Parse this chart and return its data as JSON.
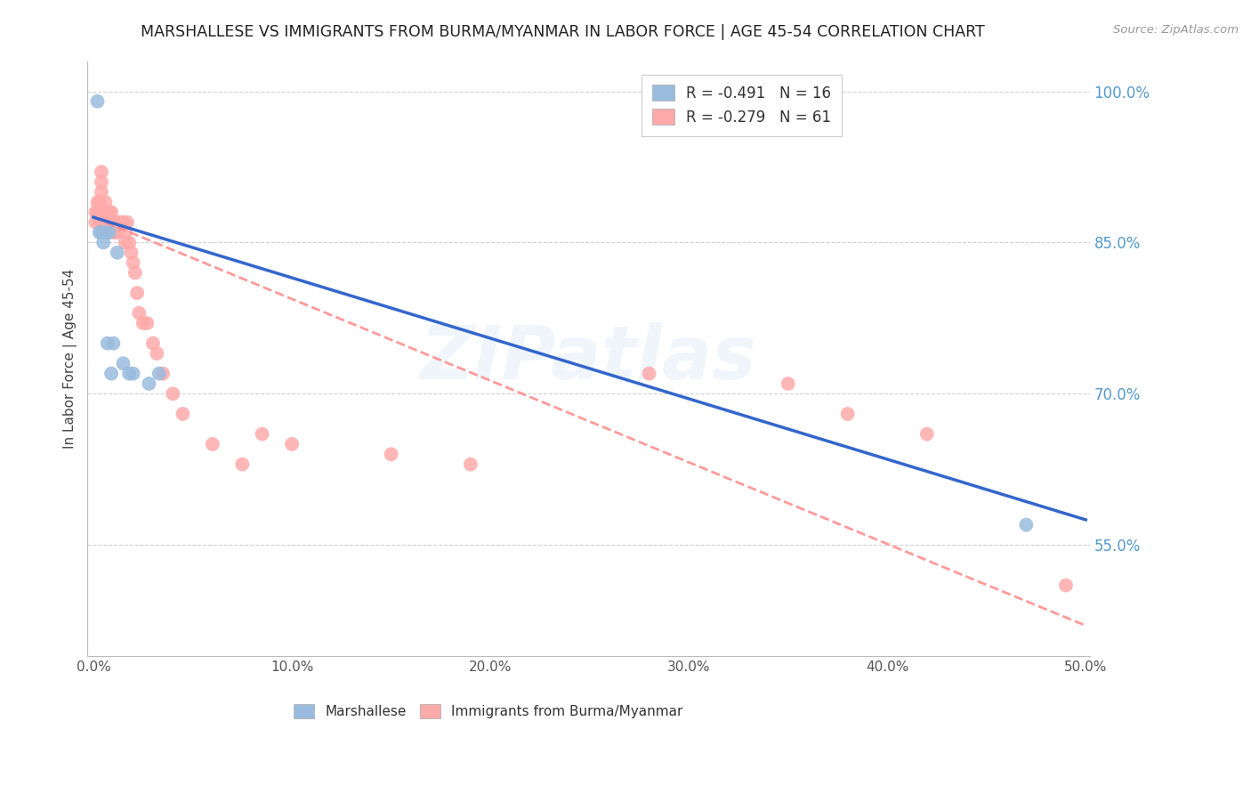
{
  "title": "MARSHALLESE VS IMMIGRANTS FROM BURMA/MYANMAR IN LABOR FORCE | AGE 45-54 CORRELATION CHART",
  "source": "Source: ZipAtlas.com",
  "ylabel": "In Labor Force | Age 45-54",
  "watermark": "ZIPatlas",
  "xlim": [
    -0.003,
    0.502
  ],
  "ylim": [
    0.44,
    1.03
  ],
  "yticks": [
    0.55,
    0.7,
    0.85,
    1.0
  ],
  "ytick_labels": [
    "55.0%",
    "70.0%",
    "85.0%",
    "100.0%"
  ],
  "xticks": [
    0.0,
    0.1,
    0.2,
    0.3,
    0.4,
    0.5
  ],
  "xtick_labels": [
    "0.0%",
    "10.0%",
    "20.0%",
    "30.0%",
    "40.0%",
    "50.0%"
  ],
  "blue_scatter_color": "#99BBDD",
  "pink_scatter_color": "#FFAAAA",
  "blue_line_color": "#3366CC",
  "pink_line_color": "#FF8888",
  "legend_r_blue": "R = -0.491",
  "legend_n_blue": "N = 16",
  "legend_r_pink": "R = -0.279",
  "legend_n_pink": "N = 61",
  "marshallese_x": [
    0.002,
    0.003,
    0.004,
    0.005,
    0.006,
    0.007,
    0.008,
    0.009,
    0.01,
    0.012,
    0.015,
    0.018,
    0.02,
    0.028,
    0.033,
    0.47
  ],
  "marshallese_y": [
    0.99,
    0.86,
    0.86,
    0.85,
    0.86,
    0.75,
    0.86,
    0.72,
    0.75,
    0.84,
    0.73,
    0.72,
    0.72,
    0.71,
    0.72,
    0.57
  ],
  "burma_x": [
    0.001,
    0.001,
    0.002,
    0.002,
    0.003,
    0.003,
    0.003,
    0.004,
    0.004,
    0.004,
    0.004,
    0.005,
    0.005,
    0.005,
    0.006,
    0.006,
    0.006,
    0.007,
    0.007,
    0.008,
    0.008,
    0.008,
    0.009,
    0.01,
    0.01,
    0.01,
    0.011,
    0.011,
    0.012,
    0.012,
    0.013,
    0.014,
    0.015,
    0.015,
    0.016,
    0.016,
    0.017,
    0.018,
    0.019,
    0.02,
    0.021,
    0.022,
    0.023,
    0.025,
    0.027,
    0.03,
    0.032,
    0.035,
    0.04,
    0.045,
    0.06,
    0.075,
    0.085,
    0.1,
    0.15,
    0.19,
    0.28,
    0.35,
    0.38,
    0.42,
    0.49
  ],
  "burma_y": [
    0.88,
    0.87,
    0.89,
    0.88,
    0.89,
    0.88,
    0.87,
    0.92,
    0.91,
    0.9,
    0.87,
    0.88,
    0.88,
    0.87,
    0.89,
    0.88,
    0.87,
    0.88,
    0.88,
    0.88,
    0.87,
    0.86,
    0.88,
    0.87,
    0.87,
    0.86,
    0.87,
    0.86,
    0.87,
    0.86,
    0.87,
    0.87,
    0.87,
    0.87,
    0.86,
    0.85,
    0.87,
    0.85,
    0.84,
    0.83,
    0.82,
    0.8,
    0.78,
    0.77,
    0.77,
    0.75,
    0.74,
    0.72,
    0.7,
    0.68,
    0.65,
    0.63,
    0.66,
    0.65,
    0.64,
    0.63,
    0.72,
    0.71,
    0.68,
    0.66,
    0.51
  ],
  "blue_trendline_x": [
    0.0,
    0.5
  ],
  "blue_trendline_y": [
    0.875,
    0.575
  ],
  "pink_trendline_x": [
    0.0,
    0.5
  ],
  "pink_trendline_y": [
    0.875,
    0.47
  ]
}
